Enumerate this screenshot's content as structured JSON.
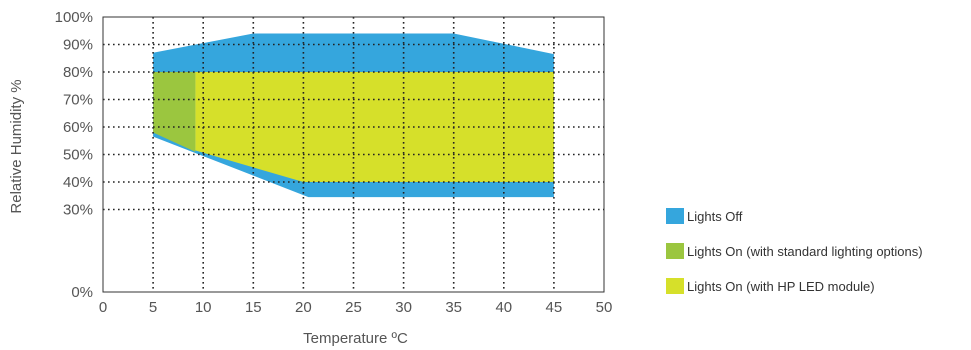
{
  "chart_data": {
    "type": "area",
    "title": "",
    "xlabel": "Temperature ºC",
    "ylabel": "Relative Humidity %",
    "xlim": [
      0,
      50
    ],
    "ylim": [
      0,
      100
    ],
    "x_ticks": [
      "0",
      "5",
      "10",
      "15",
      "20",
      "25",
      "30",
      "35",
      "40",
      "45",
      "50"
    ],
    "y_ticks": [
      "0%",
      "30%",
      "40%",
      "50%",
      "60%",
      "70%",
      "80%",
      "90%",
      "100%"
    ],
    "grid": true,
    "legend_position": "right",
    "series": [
      {
        "name": "Lights Off",
        "color": "#35a6dd",
        "points": [
          [
            5,
            87
          ],
          [
            10,
            90.5
          ],
          [
            15,
            94
          ],
          [
            35,
            94
          ],
          [
            45,
            86.5
          ],
          [
            45,
            34.5
          ],
          [
            20.5,
            34.5
          ],
          [
            5,
            56.5
          ]
        ]
      },
      {
        "name": "Lights On (with standard lighting options)",
        "color": "#9bc63f",
        "points": [
          [
            5,
            80
          ],
          [
            9.2,
            80
          ],
          [
            9.2,
            51
          ],
          [
            5,
            58
          ]
        ]
      },
      {
        "name": "Lights On (with HP LED module)",
        "color": "#d6e02a",
        "points": [
          [
            9.2,
            80
          ],
          [
            45,
            80
          ],
          [
            45,
            40
          ],
          [
            20,
            40
          ],
          [
            9.2,
            51.5
          ]
        ]
      }
    ]
  }
}
